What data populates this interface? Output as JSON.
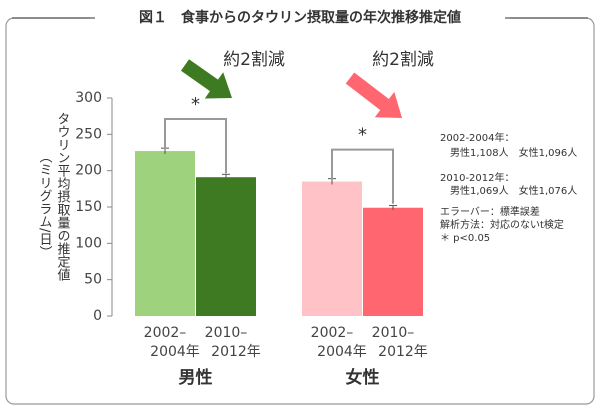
{
  "title": "図１　食事からのタウリン摂取量の年次推移推定値",
  "chart_data": {
    "type": "grouped_bar",
    "y_label": [
      "タウリン平均摂取量の推定値",
      "（ミリグラム/日）"
    ],
    "ylim": [
      0,
      300
    ],
    "yticks": [
      0,
      50,
      100,
      150,
      200,
      250,
      300
    ],
    "x_labels": [
      [
        "2002–",
        "2004年"
      ],
      [
        "2010–",
        "2012年"
      ]
    ],
    "groups": [
      {
        "name": "男性",
        "name_color": "#3d7a22",
        "values": [
          227,
          191
        ],
        "errors": [
          4,
          4
        ],
        "colors": [
          "#9fd27c",
          "#3d7a22"
        ],
        "annotation": "約2割減",
        "annotation_color": "#3d7a22",
        "significance": "*"
      },
      {
        "name": "女性",
        "name_color": "#f0406a",
        "values": [
          185,
          149
        ],
        "errors": [
          4,
          3
        ],
        "colors": [
          "#ffc2c6",
          "#ff6670"
        ],
        "annotation": "約2割減",
        "annotation_color": "#ff6670",
        "significance": "*"
      }
    ]
  },
  "notes": [
    "2002-2004年：",
    "　男性1,108人　女性1,096人",
    "2010-2012年：",
    "　男性1,069人　女性1,076人",
    "エラーバー：標準誤差",
    "解析方法：対応のないt検定",
    "＊ p<0.05"
  ]
}
